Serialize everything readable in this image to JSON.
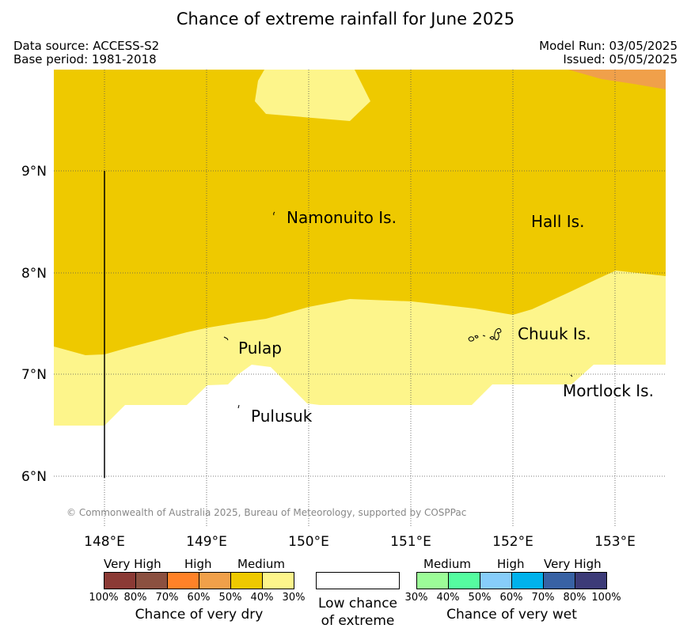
{
  "title": "Chance of extreme rainfall for June 2025",
  "meta_left": {
    "source": "Data source: ACCESS-S2",
    "base": "Base period: 1981-2018"
  },
  "meta_right": {
    "run": "Model Run: 03/05/2025",
    "issued": "Issued: 05/05/2025"
  },
  "axes": {
    "lon_ticks": [
      "148°E",
      "149°E",
      "150°E",
      "151°E",
      "152°E",
      "153°E"
    ],
    "lat_ticks": [
      "9°N",
      "8°N",
      "7°N",
      "6°N"
    ],
    "lon_range": [
      147.5,
      153.5
    ],
    "lat_range": [
      5.5,
      9.98
    ],
    "grid": true
  },
  "places": [
    "Namonuito Is.",
    "Hall Is.",
    "Pulap",
    "Chuuk Is.",
    "Mortlock Is.",
    "Pulusuk"
  ],
  "copyright": "© Commonwealth of Australia 2025, Bureau of Meteorology, supported by COSPPac",
  "legend": {
    "dry": {
      "headings": [
        "Very High",
        "High",
        "Medium"
      ],
      "colors": [
        "#8b3a35",
        "#8b5040",
        "#ff8228",
        "#f0a04a",
        "#eec900",
        "#fdf58b"
      ],
      "ticks": [
        "100%",
        "80%",
        "70%",
        "60%",
        "50%",
        "40%",
        "30%"
      ],
      "caption": "Chance of very dry"
    },
    "low": {
      "line1": "Low chance",
      "line2": "of extreme",
      "color": "#ffffff"
    },
    "wet": {
      "headings": [
        "Medium",
        "High",
        "Very High"
      ],
      "colors": [
        "#9cfc98",
        "#55fca0",
        "#87cdfa",
        "#00b2ec",
        "#3862a4",
        "#3c3b78"
      ],
      "ticks": [
        "30%",
        "40%",
        "50%",
        "60%",
        "70%",
        "80%",
        "100%"
      ],
      "caption": "Chance of very wet"
    }
  },
  "colors": {
    "dry_medium_50": "#eec900",
    "dry_medium_40": "#fdf58b",
    "dry_high_60": "#f0a04a",
    "low": "#ffffff"
  }
}
